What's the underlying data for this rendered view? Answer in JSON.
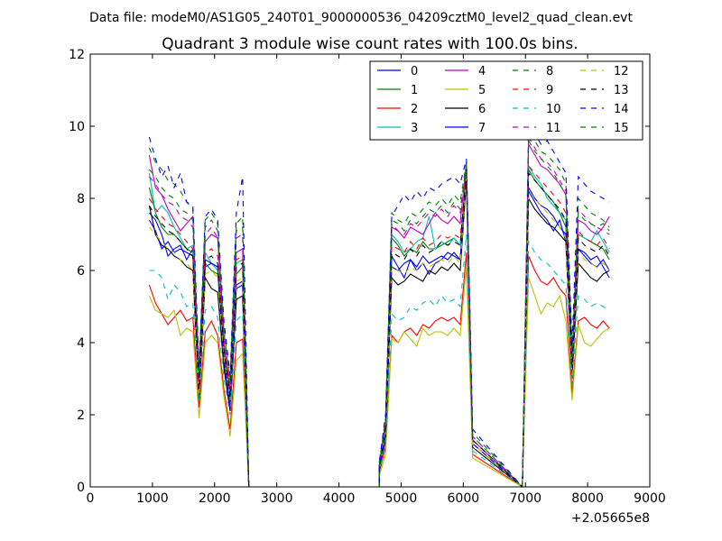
{
  "figure": {
    "suptitle": "Data file: modeM0/AS1G05_240T01_9000000536_04209cztM0_level2_quad_clean.evt",
    "title": "Quadrant 3 module wise count rates with 100.0s bins.",
    "x_offset_label": "+2.05665e8"
  },
  "chart_data": {
    "type": "line",
    "title": "Quadrant 3 module wise count rates with 100.0s bins.",
    "xlabel": "",
    "ylabel": "",
    "xlim": [
      0,
      9000
    ],
    "ylim": [
      0,
      12
    ],
    "x_ticks": [
      0,
      1000,
      2000,
      3000,
      4000,
      5000,
      6000,
      7000,
      8000,
      9000
    ],
    "y_ticks": [
      0,
      2,
      4,
      6,
      8,
      10,
      12
    ],
    "x_offset": "+2.05665e8",
    "grid": false,
    "legend_position": "top-right",
    "legend_columns": 4,
    "x_segments": [
      {
        "from": 950,
        "to": 2650
      },
      {
        "from": 2650,
        "to": 4650
      },
      {
        "from": 4650,
        "to": 6050
      },
      {
        "from": 6050,
        "to": 6950
      },
      {
        "from": 6950,
        "to": 8350
      }
    ],
    "series": [
      {
        "name": "0",
        "color": "#0000ff",
        "dash": "solid",
        "seg1": [
          7.6,
          7.4,
          7.0,
          6.4,
          6.6,
          6.7,
          6.3,
          6.6,
          2.5,
          6.1,
          6.2,
          6.1,
          3.5,
          2.3,
          5.5,
          5.6,
          0.0
        ],
        "seg3": [
          0.5,
          1.4,
          6.4,
          6.1,
          5.8,
          6.3,
          6.0,
          6.2,
          5.9,
          6.2,
          6.3,
          6.5,
          6.4,
          6.3,
          8.7,
          1.2
        ],
        "seg5": [
          0.0,
          8.2,
          7.9,
          7.6,
          7.4,
          7.1,
          7.4,
          6.8,
          3.2,
          6.6,
          6.5,
          6.3,
          6.4,
          6.1,
          5.8
        ]
      },
      {
        "name": "1",
        "color": "#008000",
        "dash": "solid",
        "seg1": [
          8.3,
          7.6,
          7.2,
          7.0,
          7.0,
          6.8,
          6.6,
          6.5,
          2.6,
          6.2,
          6.0,
          5.9,
          3.6,
          2.5,
          5.9,
          6.1,
          0.0
        ],
        "seg3": [
          0.6,
          1.5,
          6.9,
          6.7,
          6.4,
          6.6,
          6.5,
          6.8,
          6.6,
          6.6,
          6.7,
          6.8,
          6.9,
          6.7,
          8.8,
          1.2
        ],
        "seg5": [
          0.0,
          8.8,
          8.5,
          8.3,
          8.1,
          7.9,
          7.6,
          7.2,
          3.4,
          7.0,
          6.9,
          6.8,
          6.7,
          6.6,
          6.3
        ]
      },
      {
        "name": "2",
        "color": "#ff0000",
        "dash": "solid",
        "seg1": [
          5.6,
          5.1,
          4.8,
          4.5,
          4.7,
          4.9,
          4.6,
          4.7,
          2.2,
          4.3,
          4.6,
          4.2,
          2.7,
          1.6,
          4.0,
          4.1,
          0.0
        ],
        "seg3": [
          0.4,
          1.1,
          4.2,
          4.0,
          4.3,
          4.4,
          4.2,
          4.5,
          4.4,
          4.6,
          4.7,
          4.6,
          4.7,
          4.5,
          6.5,
          0.9
        ],
        "seg5": [
          0.0,
          6.4,
          6.0,
          5.7,
          5.6,
          5.8,
          5.5,
          5.3,
          2.6,
          4.6,
          4.7,
          4.5,
          4.4,
          4.6,
          4.4
        ]
      },
      {
        "name": "3",
        "color": "#00bfbf",
        "dash": "solid",
        "seg1": [
          8.7,
          7.6,
          7.8,
          7.6,
          7.2,
          6.9,
          6.6,
          6.7,
          2.8,
          6.5,
          6.2,
          6.0,
          3.8,
          2.6,
          6.2,
          6.3,
          0.0
        ],
        "seg3": [
          0.6,
          1.6,
          7.0,
          6.8,
          6.5,
          6.6,
          6.8,
          6.9,
          7.5,
          6.6,
          6.8,
          6.7,
          6.9,
          6.7,
          8.5,
          1.3
        ],
        "seg5": [
          0.0,
          8.9,
          8.6,
          8.4,
          8.0,
          7.8,
          7.6,
          7.4,
          3.5,
          7.0,
          6.9,
          6.8,
          7.1,
          6.8,
          6.5
        ]
      },
      {
        "name": "4",
        "color": "#bf00bf",
        "dash": "solid",
        "seg1": [
          9.2,
          8.3,
          8.1,
          7.7,
          7.4,
          7.1,
          7.3,
          7.5,
          3.0,
          6.8,
          7.0,
          6.9,
          4.0,
          2.7,
          6.5,
          6.6,
          0.0
        ],
        "seg3": [
          0.6,
          1.7,
          7.2,
          7.1,
          6.9,
          7.2,
          7.1,
          7.0,
          7.3,
          7.6,
          7.4,
          7.3,
          7.5,
          7.3,
          9.0,
          1.3
        ],
        "seg5": [
          0.0,
          9.5,
          9.2,
          8.9,
          8.8,
          8.6,
          8.4,
          8.1,
          3.6,
          7.4,
          7.3,
          7.1,
          7.0,
          7.2,
          7.5
        ]
      },
      {
        "name": "5",
        "color": "#bfbf00",
        "dash": "solid",
        "seg1": [
          5.3,
          4.9,
          4.8,
          4.7,
          4.9,
          4.2,
          4.4,
          4.3,
          1.9,
          4.0,
          4.2,
          4.0,
          2.5,
          1.4,
          3.5,
          3.7,
          0.0
        ],
        "seg3": [
          0.3,
          0.9,
          4.1,
          4.0,
          4.3,
          4.1,
          3.9,
          4.4,
          4.2,
          4.3,
          4.3,
          4.2,
          4.4,
          4.2,
          6.1,
          0.8
        ],
        "seg5": [
          0.0,
          5.8,
          5.3,
          4.8,
          5.1,
          5.0,
          5.3,
          4.6,
          2.4,
          4.5,
          4.0,
          3.9,
          4.1,
          4.3,
          4.4
        ]
      },
      {
        "name": "6",
        "color": "#000000",
        "dash": "solid",
        "seg1": [
          7.8,
          7.0,
          6.7,
          6.6,
          6.4,
          6.3,
          6.1,
          6.0,
          2.4,
          5.8,
          5.5,
          5.4,
          3.3,
          2.1,
          5.2,
          5.3,
          0.0
        ],
        "seg3": [
          0.5,
          1.3,
          5.8,
          5.6,
          5.7,
          5.9,
          5.8,
          5.7,
          6.0,
          5.9,
          6.1,
          6.0,
          6.2,
          6.0,
          8.5,
          1.1
        ],
        "seg5": [
          0.0,
          8.0,
          7.7,
          7.5,
          7.3,
          7.2,
          7.0,
          6.8,
          3.0,
          6.2,
          6.0,
          5.8,
          5.7,
          5.9,
          6.0
        ]
      },
      {
        "name": "7",
        "color": "#0000ff",
        "dash": "solid",
        "seg1": [
          7.4,
          7.1,
          6.6,
          6.8,
          6.5,
          6.6,
          6.5,
          6.4,
          2.5,
          6.3,
          6.2,
          6.1,
          3.5,
          2.2,
          5.6,
          5.7,
          0.0
        ],
        "seg3": [
          0.5,
          1.4,
          6.1,
          6.0,
          6.2,
          6.3,
          6.1,
          6.4,
          6.2,
          6.3,
          6.4,
          6.3,
          6.5,
          6.3,
          8.8,
          1.2
        ],
        "seg5": [
          0.0,
          8.3,
          8.0,
          7.8,
          7.7,
          7.5,
          7.2,
          7.0,
          3.2,
          6.6,
          6.4,
          6.2,
          6.1,
          6.3,
          6.0
        ]
      },
      {
        "name": "8",
        "color": "#008000",
        "dash": "dashed",
        "seg1": [
          9.4,
          9.0,
          8.8,
          8.5,
          8.4,
          8.2,
          7.9,
          7.7,
          3.2,
          7.4,
          7.6,
          7.3,
          4.4,
          3.0,
          7.3,
          7.5,
          0.0
        ],
        "seg3": [
          0.7,
          1.9,
          7.6,
          7.4,
          7.3,
          7.6,
          7.5,
          7.7,
          7.9,
          7.8,
          8.0,
          7.8,
          8.1,
          7.9,
          9.0,
          1.5
        ],
        "seg5": [
          0.0,
          9.8,
          9.6,
          9.3,
          9.2,
          9.0,
          8.8,
          8.4,
          3.8,
          8.0,
          7.8,
          7.6,
          7.5,
          7.4,
          7.2
        ]
      },
      {
        "name": "9",
        "color": "#ff0000",
        "dash": "dashed",
        "seg1": [
          8.0,
          7.7,
          7.5,
          7.3,
          7.2,
          7.0,
          6.8,
          6.6,
          2.9,
          6.5,
          6.6,
          6.4,
          3.9,
          2.6,
          6.3,
          6.4,
          0.0
        ],
        "seg3": [
          0.6,
          1.7,
          6.7,
          6.6,
          6.5,
          6.8,
          6.6,
          6.9,
          6.7,
          6.8,
          7.0,
          6.9,
          7.0,
          6.9,
          8.8,
          1.3
        ],
        "seg5": [
          0.0,
          8.9,
          8.7,
          8.5,
          8.3,
          8.1,
          7.9,
          7.6,
          3.4,
          7.1,
          6.9,
          6.8,
          6.7,
          6.9,
          6.6
        ]
      },
      {
        "name": "10",
        "color": "#00bfbf",
        "dash": "dashed",
        "seg1": [
          6.0,
          6.0,
          5.8,
          5.2,
          5.6,
          5.4,
          5.0,
          5.1,
          2.4,
          4.9,
          5.0,
          4.7,
          3.0,
          2.0,
          4.6,
          4.8,
          0.0
        ],
        "seg3": [
          0.4,
          1.2,
          4.8,
          4.6,
          4.7,
          5.0,
          4.9,
          5.1,
          5.2,
          5.0,
          5.3,
          5.1,
          5.2,
          5.0,
          7.0,
          1.0
        ],
        "seg5": [
          0.0,
          6.8,
          6.5,
          6.3,
          6.2,
          6.0,
          5.8,
          5.6,
          2.8,
          5.3,
          5.2,
          5.0,
          5.1,
          5.0,
          4.9
        ]
      },
      {
        "name": "11",
        "color": "#bf00bf",
        "dash": "dashed",
        "seg1": [
          8.6,
          8.4,
          8.1,
          7.9,
          7.8,
          7.5,
          7.4,
          7.2,
          3.0,
          7.0,
          7.2,
          6.9,
          4.2,
          2.8,
          6.9,
          7.0,
          0.0
        ],
        "seg3": [
          0.6,
          1.8,
          7.3,
          7.1,
          7.0,
          7.3,
          7.2,
          7.4,
          7.6,
          7.5,
          7.7,
          7.5,
          7.8,
          7.6,
          9.0,
          1.4
        ],
        "seg5": [
          0.0,
          9.7,
          9.4,
          9.1,
          9.0,
          8.8,
          8.5,
          8.2,
          3.7,
          7.7,
          7.5,
          7.3,
          7.2,
          7.1,
          7.0
        ]
      },
      {
        "name": "12",
        "color": "#bfbf00",
        "dash": "dashed",
        "seg1": [
          7.2,
          7.0,
          6.8,
          6.6,
          6.5,
          6.3,
          6.2,
          6.0,
          2.6,
          5.9,
          6.0,
          5.8,
          3.6,
          2.4,
          5.7,
          5.8,
          0.0
        ],
        "seg3": [
          0.5,
          1.5,
          6.1,
          6.0,
          5.9,
          6.1,
          6.0,
          6.2,
          6.1,
          6.2,
          6.3,
          6.2,
          6.4,
          6.2,
          8.6,
          1.2
        ],
        "seg5": [
          0.0,
          8.2,
          8.0,
          7.8,
          7.6,
          7.4,
          7.2,
          6.9,
          3.1,
          6.5,
          6.3,
          6.2,
          6.1,
          6.2,
          6.0
        ]
      },
      {
        "name": "13",
        "color": "#000000",
        "dash": "dashed",
        "seg1": [
          7.8,
          7.5,
          7.3,
          7.1,
          7.0,
          6.8,
          6.6,
          6.4,
          2.7,
          6.3,
          6.4,
          6.2,
          3.8,
          2.5,
          6.1,
          6.2,
          0.0
        ],
        "seg3": [
          0.5,
          1.6,
          6.5,
          6.4,
          6.3,
          6.6,
          6.4,
          6.7,
          6.5,
          6.6,
          6.8,
          6.7,
          6.8,
          6.7,
          8.7,
          1.3
        ],
        "seg5": [
          0.0,
          8.7,
          8.5,
          8.3,
          8.1,
          7.9,
          7.7,
          7.4,
          3.3,
          6.9,
          6.7,
          6.6,
          6.5,
          6.7,
          6.4
        ]
      },
      {
        "name": "14",
        "color": "#0000ff",
        "dash": "dashed",
        "seg1": [
          9.7,
          9.1,
          8.6,
          8.9,
          8.3,
          8.7,
          7.9,
          7.8,
          3.3,
          7.5,
          7.7,
          7.4,
          4.6,
          3.1,
          7.6,
          8.6,
          0.0
        ],
        "seg3": [
          0.7,
          2.0,
          7.5,
          7.8,
          8.1,
          7.9,
          8.2,
          8.0,
          8.3,
          8.2,
          8.4,
          8.5,
          8.6,
          8.4,
          9.1,
          1.6
        ],
        "seg5": [
          0.0,
          10.0,
          9.8,
          9.5,
          9.6,
          9.3,
          9.0,
          8.7,
          3.9,
          8.6,
          8.4,
          8.2,
          8.1,
          8.0,
          7.9
        ]
      },
      {
        "name": "15",
        "color": "#008000",
        "dash": "dashed",
        "seg1": [
          8.8,
          8.6,
          8.3,
          8.1,
          8.0,
          7.7,
          7.6,
          7.4,
          3.1,
          7.2,
          7.4,
          7.1,
          4.3,
          2.9,
          7.1,
          7.2,
          0.0
        ],
        "seg3": [
          0.6,
          1.8,
          7.4,
          7.3,
          7.1,
          7.4,
          7.3,
          7.5,
          7.7,
          7.6,
          7.8,
          7.6,
          7.9,
          7.7,
          8.9,
          1.4
        ],
        "seg5": [
          0.0,
          9.6,
          9.3,
          9.1,
          8.9,
          8.7,
          8.4,
          8.1,
          3.6,
          7.6,
          7.4,
          7.3,
          7.2,
          7.3,
          7.1
        ]
      }
    ]
  }
}
